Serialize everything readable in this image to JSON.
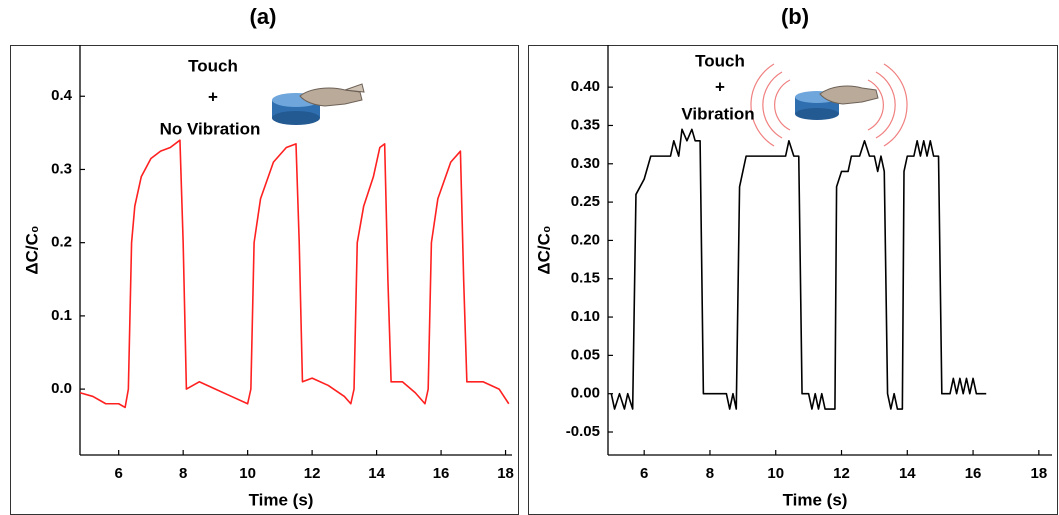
{
  "chart_data": [
    {
      "type": "line",
      "title": "(a)",
      "x_label": "Time (s)",
      "y_label": "ΔC/C₀",
      "annotations": [
        "Touch",
        "+",
        "No Vibration"
      ],
      "color": "#ff2020",
      "xlim": [
        4.8,
        18.2
      ],
      "ylim": [
        -0.09,
        0.47
      ],
      "xticks": [
        6,
        8,
        10,
        12,
        14,
        16,
        18
      ],
      "yticks": [
        {
          "value": 0,
          "label": "0.0"
        },
        0.1,
        0.2,
        0.3,
        0.4
      ],
      "x": [
        4.8,
        5.2,
        5.6,
        6.0,
        6.2,
        6.3,
        6.4,
        6.5,
        6.7,
        7.0,
        7.3,
        7.6,
        7.9,
        8.0,
        8.1,
        8.5,
        9.0,
        9.5,
        10.0,
        10.1,
        10.2,
        10.4,
        10.8,
        11.2,
        11.5,
        11.6,
        11.7,
        12.0,
        12.5,
        13.0,
        13.2,
        13.3,
        13.4,
        13.6,
        13.9,
        14.1,
        14.25,
        14.35,
        14.45,
        14.8,
        15.2,
        15.5,
        15.6,
        15.7,
        15.9,
        16.3,
        16.6,
        16.7,
        16.8,
        17.3,
        17.8,
        18.1
      ],
      "values": [
        -0.005,
        -0.01,
        -0.02,
        -0.02,
        -0.025,
        0.0,
        0.2,
        0.25,
        0.29,
        0.315,
        0.325,
        0.33,
        0.34,
        0.2,
        0.0,
        0.01,
        0.0,
        -0.01,
        -0.02,
        0.0,
        0.2,
        0.26,
        0.31,
        0.33,
        0.335,
        0.2,
        0.01,
        0.015,
        0.005,
        -0.01,
        -0.02,
        0.0,
        0.2,
        0.25,
        0.29,
        0.33,
        0.335,
        0.15,
        0.01,
        0.01,
        -0.005,
        -0.02,
        0.0,
        0.2,
        0.26,
        0.31,
        0.325,
        0.15,
        0.01,
        0.01,
        0.0,
        -0.02
      ]
    },
    {
      "type": "line",
      "title": "(b)",
      "x_label": "Time (s)",
      "y_label": "ΔC/C₀",
      "annotations": [
        "Touch",
        "+",
        "Vibration"
      ],
      "color": "#000000",
      "xlim": [
        4.9,
        18.4
      ],
      "ylim": [
        -0.08,
        0.455
      ],
      "xticks": [
        6,
        8,
        10,
        12,
        14,
        16,
        18
      ],
      "yticks": [
        {
          "value": -0.05,
          "label": "-0.05"
        },
        {
          "value": 0,
          "label": "0.00"
        },
        0.05,
        {
          "value": 0.1,
          "label": "0.10"
        },
        0.15,
        {
          "value": 0.2,
          "label": "0.20"
        },
        0.25,
        {
          "value": 0.3,
          "label": "0.30"
        },
        0.35,
        {
          "value": 0.4,
          "label": "0.40"
        }
      ],
      "x": [
        5.0,
        5.1,
        5.25,
        5.4,
        5.5,
        5.65,
        5.75,
        6.0,
        6.2,
        6.8,
        6.9,
        7.05,
        7.15,
        7.3,
        7.45,
        7.55,
        7.7,
        7.8,
        8.5,
        8.6,
        8.7,
        8.8,
        8.9,
        9.0,
        9.1,
        10.3,
        10.4,
        10.55,
        10.7,
        10.8,
        11.0,
        11.1,
        11.2,
        11.3,
        11.4,
        11.5,
        11.8,
        11.85,
        12.0,
        12.2,
        12.3,
        12.55,
        12.7,
        12.85,
        13.0,
        13.1,
        13.2,
        13.3,
        13.4,
        13.5,
        13.6,
        13.7,
        13.85,
        13.9,
        14.0,
        14.2,
        14.3,
        14.4,
        14.5,
        14.6,
        14.7,
        14.8,
        14.95,
        15.05,
        15.3,
        15.4,
        15.5,
        15.6,
        15.7,
        15.8,
        15.9,
        16.0,
        16.1,
        16.4
      ],
      "values": [
        0.0,
        -0.02,
        0.0,
        -0.02,
        0.0,
        -0.02,
        0.26,
        0.28,
        0.31,
        0.31,
        0.33,
        0.31,
        0.345,
        0.33,
        0.345,
        0.33,
        0.33,
        0.0,
        0.0,
        -0.02,
        0.0,
        -0.02,
        0.27,
        0.29,
        0.31,
        0.31,
        0.33,
        0.31,
        0.31,
        0.0,
        0.0,
        -0.02,
        0.0,
        -0.02,
        0.0,
        -0.02,
        -0.02,
        0.27,
        0.29,
        0.29,
        0.31,
        0.31,
        0.33,
        0.31,
        0.31,
        0.29,
        0.31,
        0.29,
        0.0,
        -0.02,
        0.0,
        -0.02,
        -0.02,
        0.29,
        0.31,
        0.31,
        0.33,
        0.31,
        0.33,
        0.31,
        0.33,
        0.31,
        0.31,
        0.0,
        0.0,
        0.02,
        0.0,
        0.02,
        0.0,
        0.02,
        0.0,
        0.02,
        0.0,
        0.0
      ]
    }
  ]
}
